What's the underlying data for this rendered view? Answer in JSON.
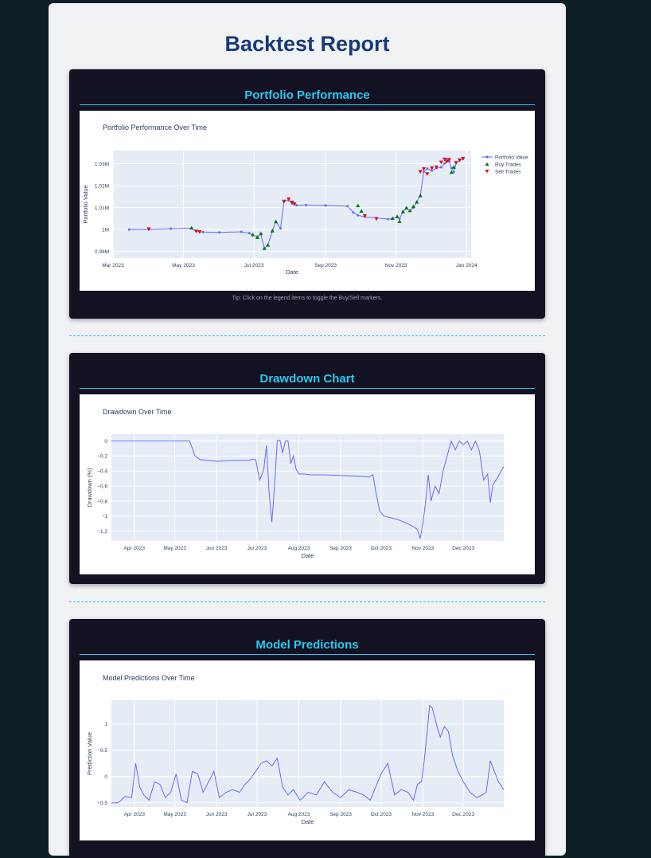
{
  "report": {
    "title": "Backtest Report"
  },
  "sections": [
    {
      "heading": "Portfolio Performance",
      "tip": "Tip: Click on the legend items to toggle the Buy/Sell markers."
    },
    {
      "heading": "Drawdown Chart"
    },
    {
      "heading": "Model Predictions"
    }
  ],
  "colors": {
    "line": "#636efa",
    "buy": "#0a7a0a",
    "sell": "#e01010",
    "plot_bg": "#e5ecf6",
    "accent": "#29c8ef",
    "title": "#173a78"
  },
  "chart_data": [
    {
      "type": "line",
      "title": "Portfolio Performance Over Time",
      "xlabel": "Date",
      "ylabel": "Portfolio Value",
      "x_range": [
        "2023-03-01",
        "2024-01-05"
      ],
      "ylim": [
        987000,
        1036000
      ],
      "x_ticks": [
        "Mar 2023",
        "May 2023",
        "Jul 2023",
        "Sep 2023",
        "Nov 2023",
        "Jan 2024"
      ],
      "x_tick_dates": [
        "2023-03-01",
        "2023-05-01",
        "2023-07-01",
        "2023-09-01",
        "2023-11-01",
        "2024-01-01"
      ],
      "y_ticks": [
        990000,
        1000000,
        1010000,
        1020000,
        1030000
      ],
      "y_tick_labels": [
        "0.99M",
        "1M",
        "1.01M",
        "1.02M",
        "1.03M"
      ],
      "legend": {
        "placement": "top-right"
      },
      "series": [
        {
          "name": "Portfolio Value",
          "x": [
            "2023-03-15",
            "2023-04-01",
            "2023-04-20",
            "2023-05-08",
            "2023-05-12",
            "2023-05-18",
            "2023-06-01",
            "2023-06-20",
            "2023-06-27",
            "2023-06-30",
            "2023-07-04",
            "2023-07-07",
            "2023-07-10",
            "2023-07-13",
            "2023-07-17",
            "2023-07-20",
            "2023-07-24",
            "2023-07-27",
            "2023-07-31",
            "2023-08-03",
            "2023-08-07",
            "2023-08-15",
            "2023-09-01",
            "2023-09-20",
            "2023-09-25",
            "2023-09-29",
            "2023-10-05",
            "2023-10-15",
            "2023-10-25",
            "2023-10-29",
            "2023-11-02",
            "2023-11-04",
            "2023-11-07",
            "2023-11-10",
            "2023-11-13",
            "2023-11-16",
            "2023-11-19",
            "2023-11-22",
            "2023-11-25",
            "2023-11-28",
            "2023-12-02",
            "2023-12-06",
            "2023-12-10",
            "2023-12-13",
            "2023-12-15",
            "2023-12-17",
            "2023-12-19",
            "2023-12-21",
            "2023-12-23",
            "2023-12-26",
            "2023-12-29"
          ],
          "values": [
            1000000,
            1000000,
            1000400,
            1000600,
            999200,
            998900,
            998700,
            999000,
            998400,
            997400,
            996800,
            997800,
            991500,
            992800,
            999500,
            1003700,
            1000500,
            1012800,
            1013400,
            1011800,
            1011100,
            1011200,
            1011000,
            1010700,
            1007800,
            1006500,
            1005800,
            1005300,
            1004800,
            1005000,
            1005800,
            1004900,
            1008200,
            1009900,
            1008700,
            1010000,
            1012600,
            1015500,
            1026300,
            1027800,
            1026900,
            1028000,
            1028400,
            1030100,
            1032000,
            1031000,
            1028000,
            1026200,
            1030400,
            1031600,
            1032300
          ]
        },
        {
          "name": "Buy Trades",
          "x": [
            "2023-05-08",
            "2023-06-30",
            "2023-07-04",
            "2023-07-07",
            "2023-07-10",
            "2023-07-13",
            "2023-07-17",
            "2023-07-20",
            "2023-09-29",
            "2023-10-02",
            "2023-10-29",
            "2023-11-02",
            "2023-11-04",
            "2023-11-07",
            "2023-11-10",
            "2023-11-13",
            "2023-11-16",
            "2023-11-19",
            "2023-11-22",
            "2023-12-19",
            "2023-12-21"
          ],
          "values": [
            1000800,
            997800,
            996500,
            998300,
            991500,
            993000,
            999500,
            1003700,
            1011000,
            1008500,
            1005200,
            1006000,
            1003800,
            1008200,
            1009900,
            1008700,
            1010600,
            1012600,
            1015500,
            1026200,
            1028500
          ]
        },
        {
          "name": "Sell Trades",
          "x": [
            "2023-04-01",
            "2023-05-12",
            "2023-05-15",
            "2023-07-27",
            "2023-07-31",
            "2023-08-03",
            "2023-08-05",
            "2023-10-05",
            "2023-10-15",
            "2023-11-22",
            "2023-11-25",
            "2023-11-28",
            "2023-12-02",
            "2023-12-06",
            "2023-12-10",
            "2023-12-13",
            "2023-12-15",
            "2023-12-17",
            "2023-12-23",
            "2023-12-26",
            "2023-12-29"
          ],
          "values": [
            1000200,
            999200,
            998900,
            1012800,
            1013900,
            1012400,
            1011600,
            1006200,
            1004800,
            1026300,
            1027600,
            1025300,
            1028000,
            1028400,
            1030600,
            1032000,
            1030900,
            1031800,
            1030400,
            1031600,
            1032300
          ]
        }
      ]
    },
    {
      "type": "line",
      "title": "Drawdown Over Time",
      "xlabel": "Date",
      "ylabel": "Drawdown (%)",
      "x_range": [
        "2023-03-15",
        "2023-12-31"
      ],
      "ylim": [
        -1.33,
        0.09
      ],
      "x_ticks": [
        "Apr 2023",
        "May 2023",
        "Jun 2023",
        "Jul 2023",
        "Aug 2023",
        "Sep 2023",
        "Oct 2023",
        "Nov 2023",
        "Dec 2023"
      ],
      "x_tick_dates": [
        "2023-04-01",
        "2023-05-01",
        "2023-06-01",
        "2023-07-01",
        "2023-08-01",
        "2023-09-01",
        "2023-10-01",
        "2023-11-01",
        "2023-12-01"
      ],
      "y_ticks": [
        0,
        -0.2,
        -0.4,
        -0.6,
        -0.8,
        -1,
        -1.2
      ],
      "y_tick_labels": [
        "0",
        "−0.2",
        "−0.4",
        "−0.6",
        "−0.8",
        "−1",
        "−1.2"
      ],
      "series": [
        {
          "name": "",
          "x": [
            "2023-03-15",
            "2023-05-12",
            "2023-05-14",
            "2023-05-16",
            "2023-05-20",
            "2023-06-01",
            "2023-06-15",
            "2023-06-25",
            "2023-06-28",
            "2023-06-30",
            "2023-07-03",
            "2023-07-06",
            "2023-07-08",
            "2023-07-10",
            "2023-07-12",
            "2023-07-14",
            "2023-07-16",
            "2023-07-18",
            "2023-07-20",
            "2023-07-22",
            "2023-07-24",
            "2023-07-26",
            "2023-07-28",
            "2023-07-30",
            "2023-08-01",
            "2023-08-05",
            "2023-08-10",
            "2023-08-20",
            "2023-09-01",
            "2023-09-15",
            "2023-09-22",
            "2023-09-25",
            "2023-09-27",
            "2023-09-30",
            "2023-10-03",
            "2023-10-08",
            "2023-10-14",
            "2023-10-18",
            "2023-10-23",
            "2023-10-26",
            "2023-10-28",
            "2023-10-30",
            "2023-11-01",
            "2023-11-03",
            "2023-11-05",
            "2023-11-07",
            "2023-11-10",
            "2023-11-13",
            "2023-11-16",
            "2023-11-19",
            "2023-11-22",
            "2023-11-25",
            "2023-11-28",
            "2023-12-01",
            "2023-12-04",
            "2023-12-07",
            "2023-12-10",
            "2023-12-13",
            "2023-12-16",
            "2023-12-19",
            "2023-12-21",
            "2023-12-23",
            "2023-12-26",
            "2023-12-29",
            "2023-12-31"
          ],
          "values": [
            0,
            0,
            -0.1,
            -0.2,
            -0.25,
            -0.27,
            -0.26,
            -0.26,
            -0.24,
            -0.25,
            -0.52,
            -0.38,
            -0.06,
            -0.7,
            -1.08,
            -0.6,
            0,
            0.01,
            -0.16,
            0,
            0,
            -0.3,
            -0.2,
            -0.38,
            -0.44,
            -0.44,
            -0.45,
            -0.45,
            -0.46,
            -0.47,
            -0.48,
            -0.45,
            -0.67,
            -0.93,
            -1.0,
            -1.02,
            -1.05,
            -1.08,
            -1.12,
            -1.15,
            -1.18,
            -1.3,
            -1.1,
            -0.82,
            -0.45,
            -0.8,
            -0.6,
            -0.7,
            -0.4,
            -0.2,
            0,
            -0.12,
            0,
            -0.05,
            0,
            -0.12,
            0,
            -0.14,
            -0.52,
            -0.44,
            -0.82,
            -0.58,
            -0.5,
            -0.4,
            -0.34
          ]
        }
      ]
    },
    {
      "type": "line",
      "title": "Model Predictions Over Time",
      "xlabel": "Date",
      "ylabel": "Prediction Value",
      "x_range": [
        "2023-03-15",
        "2023-12-31"
      ],
      "ylim": [
        -0.58,
        1.45
      ],
      "x_ticks": [
        "Apr 2023",
        "May 2023",
        "Jun 2023",
        "Jul 2023",
        "Aug 2023",
        "Sep 2023",
        "Oct 2023",
        "Nov 2023",
        "Dec 2023"
      ],
      "x_tick_dates": [
        "2023-04-01",
        "2023-05-01",
        "2023-06-01",
        "2023-07-01",
        "2023-08-01",
        "2023-09-01",
        "2023-10-01",
        "2023-11-01",
        "2023-12-01"
      ],
      "y_ticks": [
        1,
        0.5,
        0,
        -0.5
      ],
      "y_tick_labels": [
        "1",
        "0.5",
        "0",
        "−0.5"
      ],
      "series": [
        {
          "name": "",
          "x": [
            "2023-03-15",
            "2023-03-20",
            "2023-03-25",
            "2023-03-30",
            "2023-04-02",
            "2023-04-05",
            "2023-04-08",
            "2023-04-12",
            "2023-04-16",
            "2023-04-20",
            "2023-04-24",
            "2023-04-28",
            "2023-05-02",
            "2023-05-06",
            "2023-05-10",
            "2023-05-14",
            "2023-05-18",
            "2023-05-22",
            "2023-05-26",
            "2023-05-30",
            "2023-06-03",
            "2023-06-08",
            "2023-06-13",
            "2023-06-18",
            "2023-06-22",
            "2023-06-26",
            "2023-06-30",
            "2023-07-04",
            "2023-07-08",
            "2023-07-12",
            "2023-07-16",
            "2023-07-20",
            "2023-07-24",
            "2023-07-28",
            "2023-08-02",
            "2023-08-08",
            "2023-08-14",
            "2023-08-20",
            "2023-08-26",
            "2023-09-01",
            "2023-09-07",
            "2023-09-13",
            "2023-09-18",
            "2023-09-23",
            "2023-09-27",
            "2023-10-01",
            "2023-10-06",
            "2023-10-11",
            "2023-10-16",
            "2023-10-21",
            "2023-10-25",
            "2023-10-28",
            "2023-10-31",
            "2023-11-02",
            "2023-11-04",
            "2023-11-06",
            "2023-11-08",
            "2023-11-10",
            "2023-11-12",
            "2023-11-14",
            "2023-11-17",
            "2023-11-20",
            "2023-11-23",
            "2023-11-27",
            "2023-12-01",
            "2023-12-06",
            "2023-12-11",
            "2023-12-15",
            "2023-12-18",
            "2023-12-21",
            "2023-12-24",
            "2023-12-27",
            "2023-12-31"
          ],
          "values": [
            -0.5,
            -0.5,
            -0.38,
            -0.4,
            0.25,
            -0.2,
            -0.35,
            -0.45,
            -0.1,
            -0.15,
            -0.4,
            -0.3,
            0.05,
            -0.45,
            -0.5,
            0.1,
            0.05,
            -0.3,
            -0.1,
            0.1,
            -0.4,
            -0.3,
            -0.25,
            -0.3,
            -0.15,
            -0.05,
            0.1,
            0.25,
            0.3,
            0.2,
            0.35,
            -0.2,
            -0.35,
            -0.25,
            -0.45,
            -0.3,
            -0.35,
            -0.1,
            -0.3,
            -0.4,
            -0.25,
            -0.3,
            -0.35,
            -0.45,
            -0.2,
            0.05,
            0.25,
            -0.35,
            -0.25,
            -0.3,
            -0.45,
            -0.15,
            -0.1,
            0.3,
            0.8,
            1.35,
            1.3,
            1.1,
            0.9,
            0.75,
            0.95,
            0.85,
            0.4,
            0.1,
            -0.1,
            -0.3,
            -0.4,
            -0.35,
            -0.3,
            0.3,
            0.1,
            -0.1,
            -0.25
          ]
        }
      ]
    }
  ]
}
